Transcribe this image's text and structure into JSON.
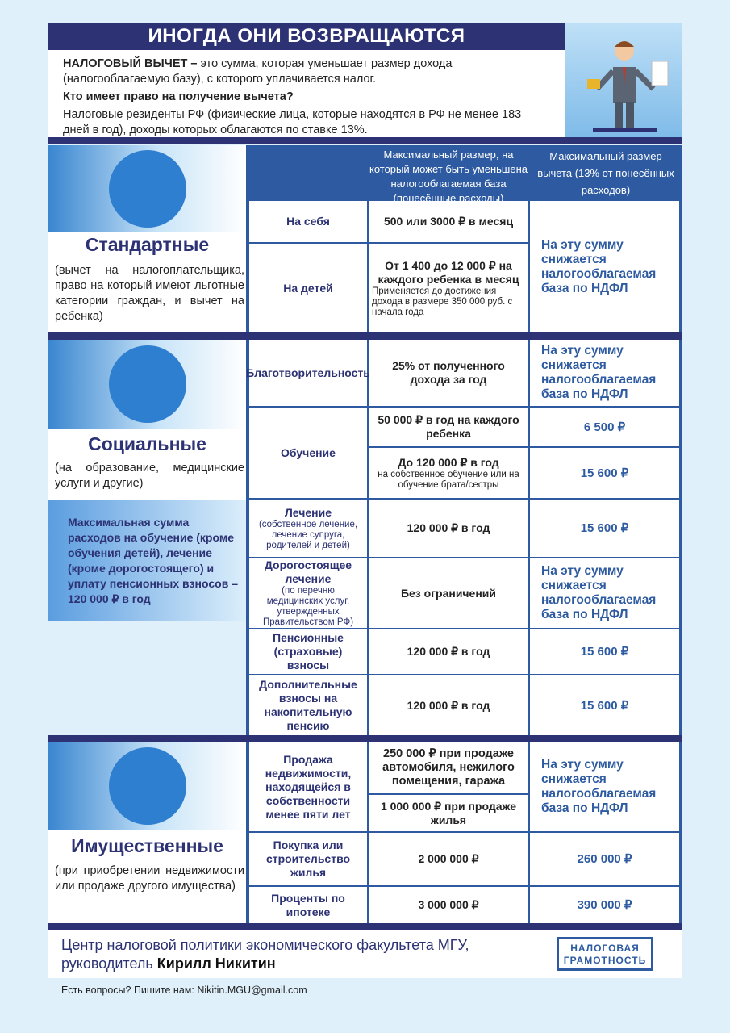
{
  "title": "ИНОГДА ОНИ ВОЗВРАЩАЮТСЯ",
  "intro": {
    "term": "НАЛОГОВЫЙ ВЫЧЕТ –",
    "definition": " это сумма, которая уменьшает размер дохода (налогооблагаемую базу), с которого уплачивается налог.",
    "question": "Кто имеет право на получение вычета?",
    "answer": "Налоговые резиденты РФ (физические лица, которые находятся в РФ не менее 183 дней в год), доходы которых облагаются по ставке 13%."
  },
  "table_header": {
    "col2": "Максимальный размер, на который может быть уменьшена налогооблагаемая база (понесённые расходы)",
    "col3": "Максимальный размер вычета (13% от понесённых расходов)"
  },
  "reduce_text": "На эту сумму снижается налогооблагаемая база по НДФЛ",
  "standard": {
    "name": "Стандартные",
    "desc": "(вычет на налогоплательщика, право на который имеют льготные категории граждан, и вычет на ребенка)",
    "rows": [
      {
        "type": "На себя",
        "amount": "500 или 3000 ₽ в месяц"
      },
      {
        "type": "На детей",
        "amount": "От 1 400 до 12 000 ₽ на каждого ребенка в месяц",
        "note": "Применяется до достижения дохода в размере 350 000 руб. с начала года"
      }
    ]
  },
  "social": {
    "name": "Социальные",
    "desc": "(на образование, медицинские услуги и другие)",
    "limit_note": "Максимальная сумма расходов на обучение (кроме обучения детей), лечение (кроме дорогостоящего) и уплату пенсионных взносов – 120 000 ₽ в год",
    "rows": [
      {
        "type": "Благотворительность",
        "amount": "25% от полученного дохода за год"
      },
      {
        "type": "Обучение",
        "amount_a": "50 000 ₽ в год на каждого ребенка",
        "deduction_a": "6 500 ₽",
        "amount_b": "До 120 000 ₽ в год",
        "amount_b_note": "на собственное обучение или на обучение брата/сестры",
        "deduction_b": "15 600 ₽"
      },
      {
        "type": "Лечение",
        "type_note": "(собственное лечение, лечение супруга, родителей и детей)",
        "amount": "120 000 ₽ в год",
        "deduction": "15 600 ₽"
      },
      {
        "type": "Дорогостоящее лечение",
        "type_note": "(по перечню медицинских услуг, утвержденных Правительством РФ)",
        "amount": "Без ограничений"
      },
      {
        "type": "Пенсионные (страховые) взносы",
        "amount": "120 000 ₽ в год",
        "deduction": "15 600 ₽"
      },
      {
        "type": "Дополнительные взносы на накопительную пенсию",
        "amount": "120 000 ₽ в год",
        "deduction": "15 600 ₽"
      }
    ]
  },
  "property": {
    "name": "Имущественные",
    "desc": "(при приобретении недвижимости или продаже другого имущества)",
    "rows": [
      {
        "type": "Продажа недвижимости, находящейся в собственности менее пяти лет",
        "amount_a": "250 000 ₽ при продаже автомобиля, нежилого помещения, гаража",
        "amount_b": "1 000 000 ₽ при продаже жилья"
      },
      {
        "type": "Покупка или строительство жилья",
        "amount": "2 000 000 ₽",
        "deduction": "260 000 ₽"
      },
      {
        "type": "Проценты по ипотеке",
        "amount": "3 000 000 ₽",
        "deduction": "390 000 ₽"
      }
    ]
  },
  "footer": {
    "org": "Центр налоговой политики экономического факультета МГУ,",
    "head_label": "руководитель ",
    "head_name": "Кирилл Никитин",
    "logo": "НАЛОГОВАЯ ГРАМОТНОСТЬ",
    "contact": "Есть вопросы? Пишите нам: Nikitin.MGU@gmail.com"
  },
  "colors": {
    "navy": "#2c3273",
    "blue": "#2d5aa0",
    "background": "#dff0fb"
  }
}
